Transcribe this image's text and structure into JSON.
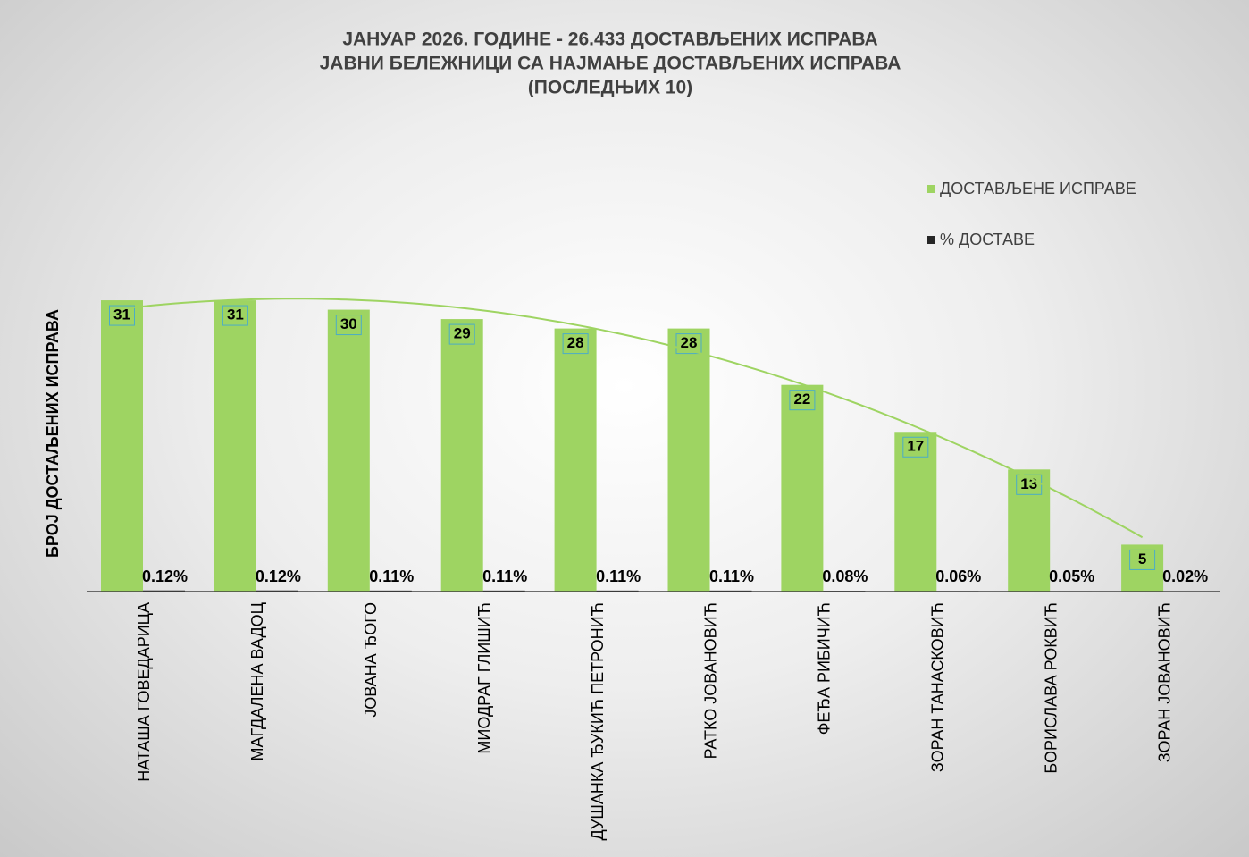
{
  "chart_data": {
    "type": "bar",
    "title": [
      "ЈАНУАР 2026. ГОДИНЕ - 26.433 ДОСТАВЉЕНИХ ИСПРАВА",
      "ЈАВНИ БЕЛЕЖНИЦИ СА НАЈМАЊЕ ДОСТАВЉЕНИХ ИСПРАВА",
      "(ПОСЛЕДЊИХ 10)"
    ],
    "y_label": "БРОЈ ДОСТАЉЕНИХ ИСПРАВА",
    "categories": [
      "НАТАША ГОВЕДАРИЦА",
      "МАГДАЛЕНА ВАДОЦ",
      "ЈОВАНА ЂОГО",
      "МИОДРАГ ГЛИШИЋ",
      "ДУШАНКА ЂУКИЋ ПЕТРОНИЋ",
      "РАТКО ЈОВАНОВИЋ",
      "ФЕЂА РИБИЧИЋ",
      "ЗОРАН ТАНАСКОВИЋ",
      "БОРИСЛАВА РОКВИЋ",
      "ЗОРАН ЈОВАНОВИЋ"
    ],
    "series": [
      {
        "name": "ДОСТАВЉЕНЕ ИСПРАВЕ",
        "color": "#9ed462",
        "values": [
          31,
          31,
          30,
          29,
          28,
          28,
          22,
          17,
          13,
          5
        ]
      },
      {
        "name": "% ДОСТАВЕ",
        "color": "#262626",
        "values": [
          0.12,
          0.12,
          0.11,
          0.11,
          0.11,
          0.11,
          0.08,
          0.06,
          0.05,
          0.02
        ],
        "value_labels": [
          "0.12%",
          "0.12%",
          "0.11%",
          "0.11%",
          "0.11%",
          "0.11%",
          "0.08%",
          "0.06%",
          "0.05%",
          "0.02%"
        ]
      }
    ],
    "trendline": "polynomial",
    "trendline_color": "#9ed462",
    "ylim": [
      0,
      35
    ],
    "legend": "right"
  }
}
